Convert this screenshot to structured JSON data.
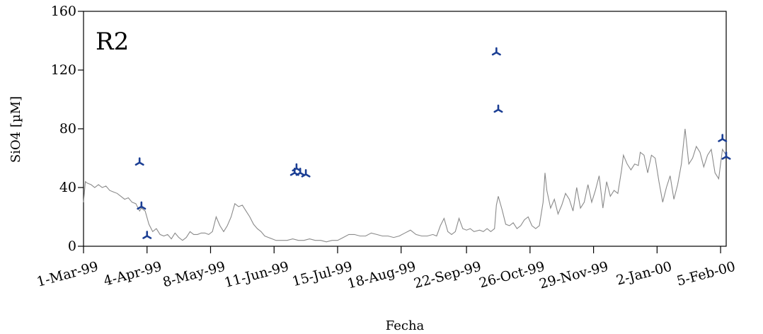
{
  "chart_data": {
    "type": "line",
    "panel_label": "R2",
    "xlabel": "Fecha",
    "ylabel": "SiO4 [µM]",
    "ylim": [
      0,
      160
    ],
    "yticks": [
      0,
      40,
      80,
      120,
      160
    ],
    "xlim": [
      0,
      344
    ],
    "xticks": [
      {
        "day": 0,
        "label": "1-Mar-99"
      },
      {
        "day": 34,
        "label": "4-Apr-99"
      },
      {
        "day": 68,
        "label": "8-May-99"
      },
      {
        "day": 102,
        "label": "11-Jun-99"
      },
      {
        "day": 136,
        "label": "15-Jul-99"
      },
      {
        "day": 170,
        "label": "18-Aug-99"
      },
      {
        "day": 205,
        "label": "22-Sep-99"
      },
      {
        "day": 239,
        "label": "26-Oct-99"
      },
      {
        "day": 273,
        "label": "29-Nov-99"
      },
      {
        "day": 307,
        "label": "2-Jan-00"
      },
      {
        "day": 341,
        "label": "5-Feb-00"
      }
    ],
    "grid": false,
    "colors": {
      "line": "#8a8a8a",
      "marker": "#1c3f94"
    },
    "series": [
      {
        "kind": "line",
        "points": [
          [
            0,
            30
          ],
          [
            1,
            44
          ],
          [
            2,
            43
          ],
          [
            4,
            42
          ],
          [
            6,
            40
          ],
          [
            8,
            42
          ],
          [
            10,
            40
          ],
          [
            12,
            41
          ],
          [
            14,
            38
          ],
          [
            16,
            37
          ],
          [
            18,
            36
          ],
          [
            20,
            34
          ],
          [
            22,
            32
          ],
          [
            24,
            33
          ],
          [
            26,
            30
          ],
          [
            28,
            29
          ],
          [
            30,
            24
          ],
          [
            31,
            26
          ],
          [
            33,
            24
          ],
          [
            35,
            15
          ],
          [
            37,
            10
          ],
          [
            39,
            12
          ],
          [
            41,
            8
          ],
          [
            43,
            7
          ],
          [
            45,
            8
          ],
          [
            47,
            5
          ],
          [
            49,
            9
          ],
          [
            51,
            6
          ],
          [
            53,
            4
          ],
          [
            55,
            6
          ],
          [
            57,
            10
          ],
          [
            59,
            8
          ],
          [
            61,
            8
          ],
          [
            63,
            9
          ],
          [
            65,
            9
          ],
          [
            67,
            8
          ],
          [
            69,
            10
          ],
          [
            71,
            20
          ],
          [
            73,
            14
          ],
          [
            75,
            10
          ],
          [
            77,
            14
          ],
          [
            79,
            20
          ],
          [
            81,
            29
          ],
          [
            83,
            27
          ],
          [
            85,
            28
          ],
          [
            87,
            24
          ],
          [
            89,
            20
          ],
          [
            91,
            15
          ],
          [
            93,
            12
          ],
          [
            95,
            10
          ],
          [
            97,
            7
          ],
          [
            99,
            6
          ],
          [
            101,
            5
          ],
          [
            103,
            4
          ],
          [
            106,
            4
          ],
          [
            109,
            4
          ],
          [
            112,
            5
          ],
          [
            115,
            4
          ],
          [
            118,
            4
          ],
          [
            121,
            5
          ],
          [
            124,
            4
          ],
          [
            127,
            4
          ],
          [
            130,
            3
          ],
          [
            133,
            4
          ],
          [
            136,
            4
          ],
          [
            139,
            6
          ],
          [
            142,
            8
          ],
          [
            145,
            8
          ],
          [
            148,
            7
          ],
          [
            151,
            7
          ],
          [
            154,
            9
          ],
          [
            157,
            8
          ],
          [
            160,
            7
          ],
          [
            163,
            7
          ],
          [
            166,
            6
          ],
          [
            169,
            7
          ],
          [
            172,
            9
          ],
          [
            175,
            11
          ],
          [
            178,
            8
          ],
          [
            181,
            7
          ],
          [
            184,
            7
          ],
          [
            187,
            8
          ],
          [
            189,
            7
          ],
          [
            191,
            14
          ],
          [
            193,
            19
          ],
          [
            195,
            10
          ],
          [
            197,
            8
          ],
          [
            199,
            10
          ],
          [
            201,
            19
          ],
          [
            203,
            12
          ],
          [
            205,
            11
          ],
          [
            207,
            12
          ],
          [
            209,
            10
          ],
          [
            212,
            11
          ],
          [
            214,
            10
          ],
          [
            216,
            12
          ],
          [
            218,
            10
          ],
          [
            220,
            12
          ],
          [
            221,
            28
          ],
          [
            222,
            34
          ],
          [
            224,
            25
          ],
          [
            226,
            15
          ],
          [
            228,
            14
          ],
          [
            230,
            16
          ],
          [
            232,
            12
          ],
          [
            234,
            14
          ],
          [
            236,
            18
          ],
          [
            238,
            20
          ],
          [
            240,
            14
          ],
          [
            242,
            12
          ],
          [
            244,
            14
          ],
          [
            246,
            30
          ],
          [
            247,
            50
          ],
          [
            248,
            38
          ],
          [
            250,
            26
          ],
          [
            252,
            32
          ],
          [
            254,
            22
          ],
          [
            256,
            28
          ],
          [
            258,
            36
          ],
          [
            260,
            32
          ],
          [
            262,
            24
          ],
          [
            264,
            40
          ],
          [
            266,
            26
          ],
          [
            268,
            30
          ],
          [
            270,
            42
          ],
          [
            272,
            30
          ],
          [
            274,
            38
          ],
          [
            276,
            48
          ],
          [
            278,
            26
          ],
          [
            280,
            44
          ],
          [
            282,
            34
          ],
          [
            284,
            38
          ],
          [
            286,
            36
          ],
          [
            288,
            52
          ],
          [
            289,
            62
          ],
          [
            291,
            56
          ],
          [
            293,
            52
          ],
          [
            295,
            56
          ],
          [
            297,
            55
          ],
          [
            298,
            64
          ],
          [
            300,
            62
          ],
          [
            302,
            50
          ],
          [
            304,
            62
          ],
          [
            306,
            60
          ],
          [
            308,
            44
          ],
          [
            310,
            30
          ],
          [
            312,
            40
          ],
          [
            314,
            48
          ],
          [
            316,
            32
          ],
          [
            318,
            42
          ],
          [
            320,
            56
          ],
          [
            322,
            80
          ],
          [
            324,
            56
          ],
          [
            326,
            60
          ],
          [
            328,
            68
          ],
          [
            330,
            64
          ],
          [
            332,
            54
          ],
          [
            334,
            62
          ],
          [
            336,
            66
          ],
          [
            338,
            50
          ],
          [
            340,
            46
          ],
          [
            342,
            66
          ],
          [
            344,
            62
          ]
        ]
      },
      {
        "kind": "scatter",
        "points": [
          [
            30,
            57
          ],
          [
            31,
            27
          ],
          [
            34,
            7
          ],
          [
            113,
            50
          ],
          [
            114,
            53
          ],
          [
            116,
            50
          ],
          [
            119,
            49
          ],
          [
            221,
            132
          ],
          [
            222,
            93
          ],
          [
            342,
            73
          ],
          [
            344,
            61
          ]
        ]
      }
    ]
  }
}
